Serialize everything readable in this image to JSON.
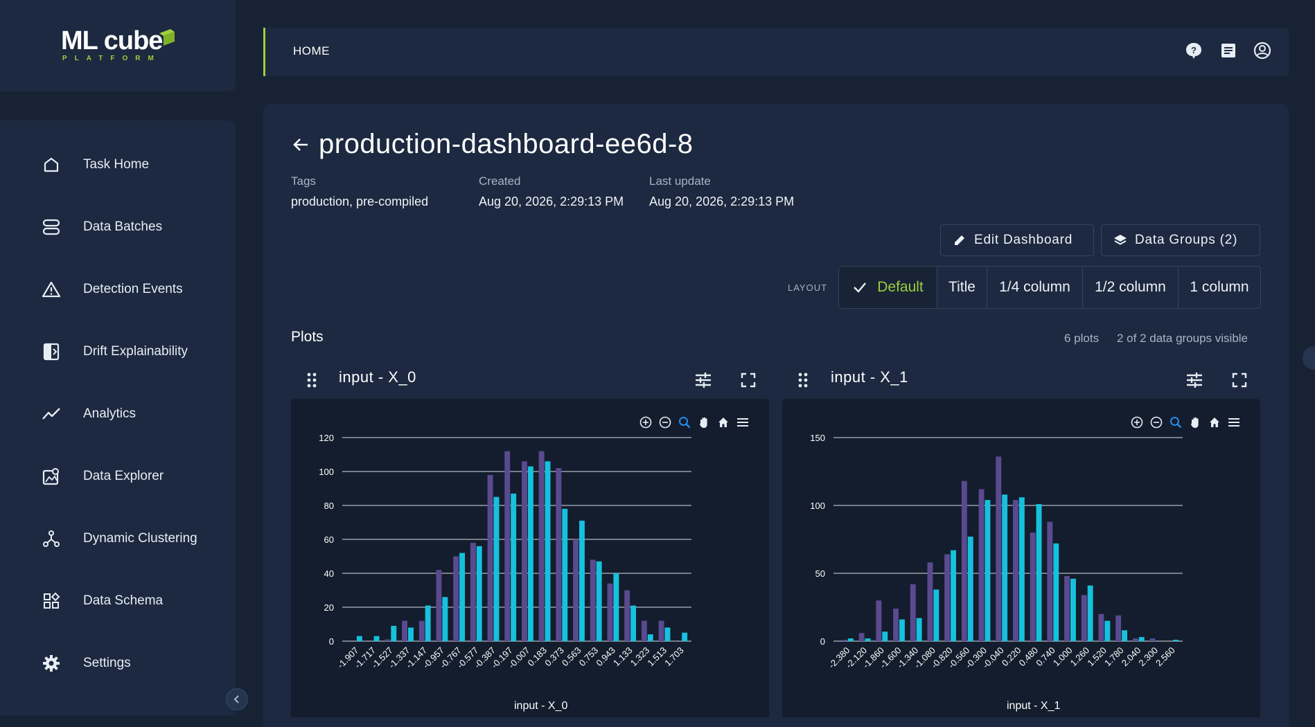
{
  "logo": {
    "name": "ML cube",
    "sub": "PLATFORM"
  },
  "header": {
    "breadcrumb": "HOME"
  },
  "sidebar": {
    "items": [
      {
        "label": "Task Home",
        "icon": "home-icon"
      },
      {
        "label": "Data Batches",
        "icon": "data-batches-icon"
      },
      {
        "label": "Detection Events",
        "icon": "warning-icon"
      },
      {
        "label": "Drift Explainability",
        "icon": "drift-explainability-icon"
      },
      {
        "label": "Analytics",
        "icon": "analytics-icon"
      },
      {
        "label": "Data Explorer",
        "icon": "data-explorer-icon"
      },
      {
        "label": "Dynamic Clustering",
        "icon": "clustering-icon"
      },
      {
        "label": "Data Schema",
        "icon": "data-schema-icon"
      },
      {
        "label": "Settings",
        "icon": "gear-icon"
      }
    ]
  },
  "page": {
    "title": "production-dashboard-ee6d-8",
    "tags_label": "Tags",
    "tags_value": "production, pre-compiled",
    "created_label": "Created",
    "created_value": "Aug 20, 2026, 2:29:13 PM",
    "updated_label": "Last update",
    "updated_value": "Aug 20, 2026, 2:29:13 PM",
    "edit_button": "Edit Dashboard",
    "groups_button": "Data Groups (2)",
    "layout_label": "LAYOUT",
    "layout_options": [
      "Default",
      "Title",
      "1/4 column",
      "1/2 column",
      "1 column"
    ],
    "layout_selected": "Default",
    "plots_title": "Plots",
    "plots_count": "6 plots",
    "groups_visible": "2 of 2 data groups visible"
  },
  "colors": {
    "accent": "#9ccf3c",
    "series_a": "#5a4a8f",
    "series_b": "#16c1dd",
    "bg": "#172234",
    "card": "#1c2940"
  },
  "chart_data": [
    {
      "type": "bar",
      "title": "input - X_0",
      "xlabel": "input - X_0",
      "ylabel": "",
      "ylim": [
        0,
        120
      ],
      "yticks": [
        0,
        20,
        40,
        60,
        80,
        100,
        120
      ],
      "categories": [
        "-1.907",
        "-1.717",
        "-1.527",
        "-1.337",
        "-1.147",
        "-0.957",
        "-0.767",
        "-0.577",
        "-0.387",
        "-0.197",
        "-0.007",
        "0.183",
        "0.373",
        "0.563",
        "0.753",
        "0.943",
        "1.133",
        "1.323",
        "1.513",
        "1.703"
      ],
      "series": [
        {
          "values": [
            0,
            0,
            1,
            12,
            12,
            42,
            50,
            58,
            98,
            112,
            106,
            112,
            102,
            60,
            48,
            34,
            30,
            12,
            12,
            0
          ]
        },
        {
          "values": [
            3,
            3,
            9,
            8,
            21,
            26,
            52,
            56,
            85,
            87,
            103,
            106,
            78,
            71,
            47,
            40,
            21,
            4,
            8,
            5
          ]
        }
      ]
    },
    {
      "type": "bar",
      "title": "input - X_1",
      "xlabel": "input - X_1",
      "ylabel": "",
      "ylim": [
        0,
        150
      ],
      "yticks": [
        0,
        50,
        100,
        150
      ],
      "categories": [
        "-2.380",
        "-2.120",
        "-1.860",
        "-1.600",
        "-1.340",
        "-1.080",
        "-0.820",
        "-0.560",
        "-0.300",
        "-0.040",
        "0.220",
        "0.480",
        "0.740",
        "1.000",
        "1.260",
        "1.520",
        "1.780",
        "2.040",
        "2.300",
        "2.560"
      ],
      "series": [
        {
          "values": [
            1,
            6,
            30,
            24,
            42,
            58,
            64,
            118,
            112,
            136,
            104,
            80,
            88,
            48,
            34,
            20,
            19,
            2,
            2,
            0
          ]
        },
        {
          "values": [
            2,
            2,
            7,
            16,
            17,
            38,
            67,
            77,
            104,
            108,
            106,
            101,
            72,
            46,
            41,
            15,
            8,
            3,
            0,
            1
          ]
        }
      ]
    }
  ]
}
